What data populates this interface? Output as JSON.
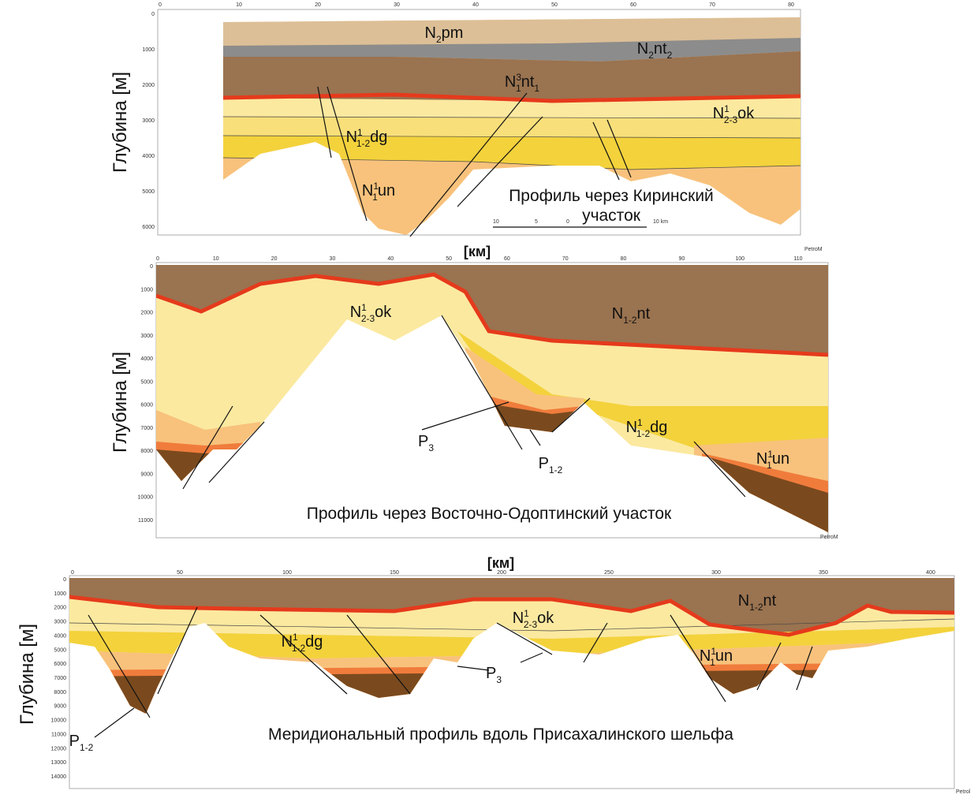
{
  "panels": [
    {
      "y_label": "Глубина [м]",
      "depth_ticks": [
        0,
        1000,
        2000,
        3000,
        4000,
        5000,
        6000
      ],
      "km_ticks": [
        0,
        10,
        20,
        30,
        40,
        50,
        60,
        70,
        80
      ],
      "layers": [
        {
          "main": "N",
          "sub": "2",
          "tail": "pm"
        },
        {
          "main": "N",
          "sub": "2",
          "tail": "nt",
          "sub2": "2"
        },
        {
          "main": "N",
          "sub": "1",
          "sup": "3",
          "tail": "nt",
          "sub2": "1"
        },
        {
          "main": "N",
          "sup": "1",
          "sub": "2-3",
          "tail": "ok"
        },
        {
          "main": "N",
          "sup": "1",
          "sub": "1-2",
          "tail": "dg"
        },
        {
          "main": "N",
          "sup": "1",
          "sub": "1",
          "tail": "un"
        }
      ],
      "title_lines": [
        "Профиль через Киринский",
        "участок"
      ],
      "scale_labels": [
        "10",
        "5",
        "0",
        "10 km"
      ],
      "logo": "PetroM"
    },
    {
      "y_label": "Глубина [м]",
      "x_label": "[км]",
      "depth_ticks": [
        0,
        1000,
        2000,
        3000,
        4000,
        5000,
        6000,
        7000,
        8000,
        9000,
        10000,
        11000
      ],
      "km_ticks": [
        0,
        10,
        20,
        30,
        40,
        50,
        60,
        70,
        80,
        90,
        100,
        110
      ],
      "layers": [
        {
          "main": "N",
          "sub": "1-2",
          "tail": "nt"
        },
        {
          "main": "N",
          "sup": "1",
          "sub": "2-3",
          "tail": "ok"
        },
        {
          "main": "N",
          "sup": "1",
          "sub": "1-2",
          "tail": "dg"
        },
        {
          "main": "N",
          "sup": "1",
          "sub": "1",
          "tail": "un"
        },
        {
          "main": "P",
          "sub": "3"
        },
        {
          "main": "P",
          "sub": "1-2"
        }
      ],
      "title_lines": [
        "Профиль через Восточно-Одоптинский участок"
      ],
      "logo": "PetroM"
    },
    {
      "y_label": "Глубина [м]",
      "x_label": "[км]",
      "depth_ticks": [
        0,
        1000,
        2000,
        3000,
        4000,
        5000,
        6000,
        7000,
        8000,
        9000,
        10000,
        11000,
        12000,
        13000,
        14000
      ],
      "km_ticks": [
        0,
        50,
        100,
        150,
        200,
        250,
        300,
        350,
        400
      ],
      "layers": [
        {
          "main": "N",
          "sub": "1-2",
          "tail": "nt"
        },
        {
          "main": "N",
          "sup": "1",
          "sub": "2-3",
          "tail": "ok"
        },
        {
          "main": "N",
          "sup": "1",
          "sub": "1-2",
          "tail": "dg"
        },
        {
          "main": "N",
          "sup": "1",
          "sub": "1",
          "tail": "un"
        },
        {
          "main": "P",
          "sub": "3"
        },
        {
          "main": "P",
          "sub": "1-2"
        }
      ],
      "title_lines": [
        "Меридиональный профиль вдоль Присахалинского шельфа"
      ],
      "logo": "Petrol"
    }
  ]
}
